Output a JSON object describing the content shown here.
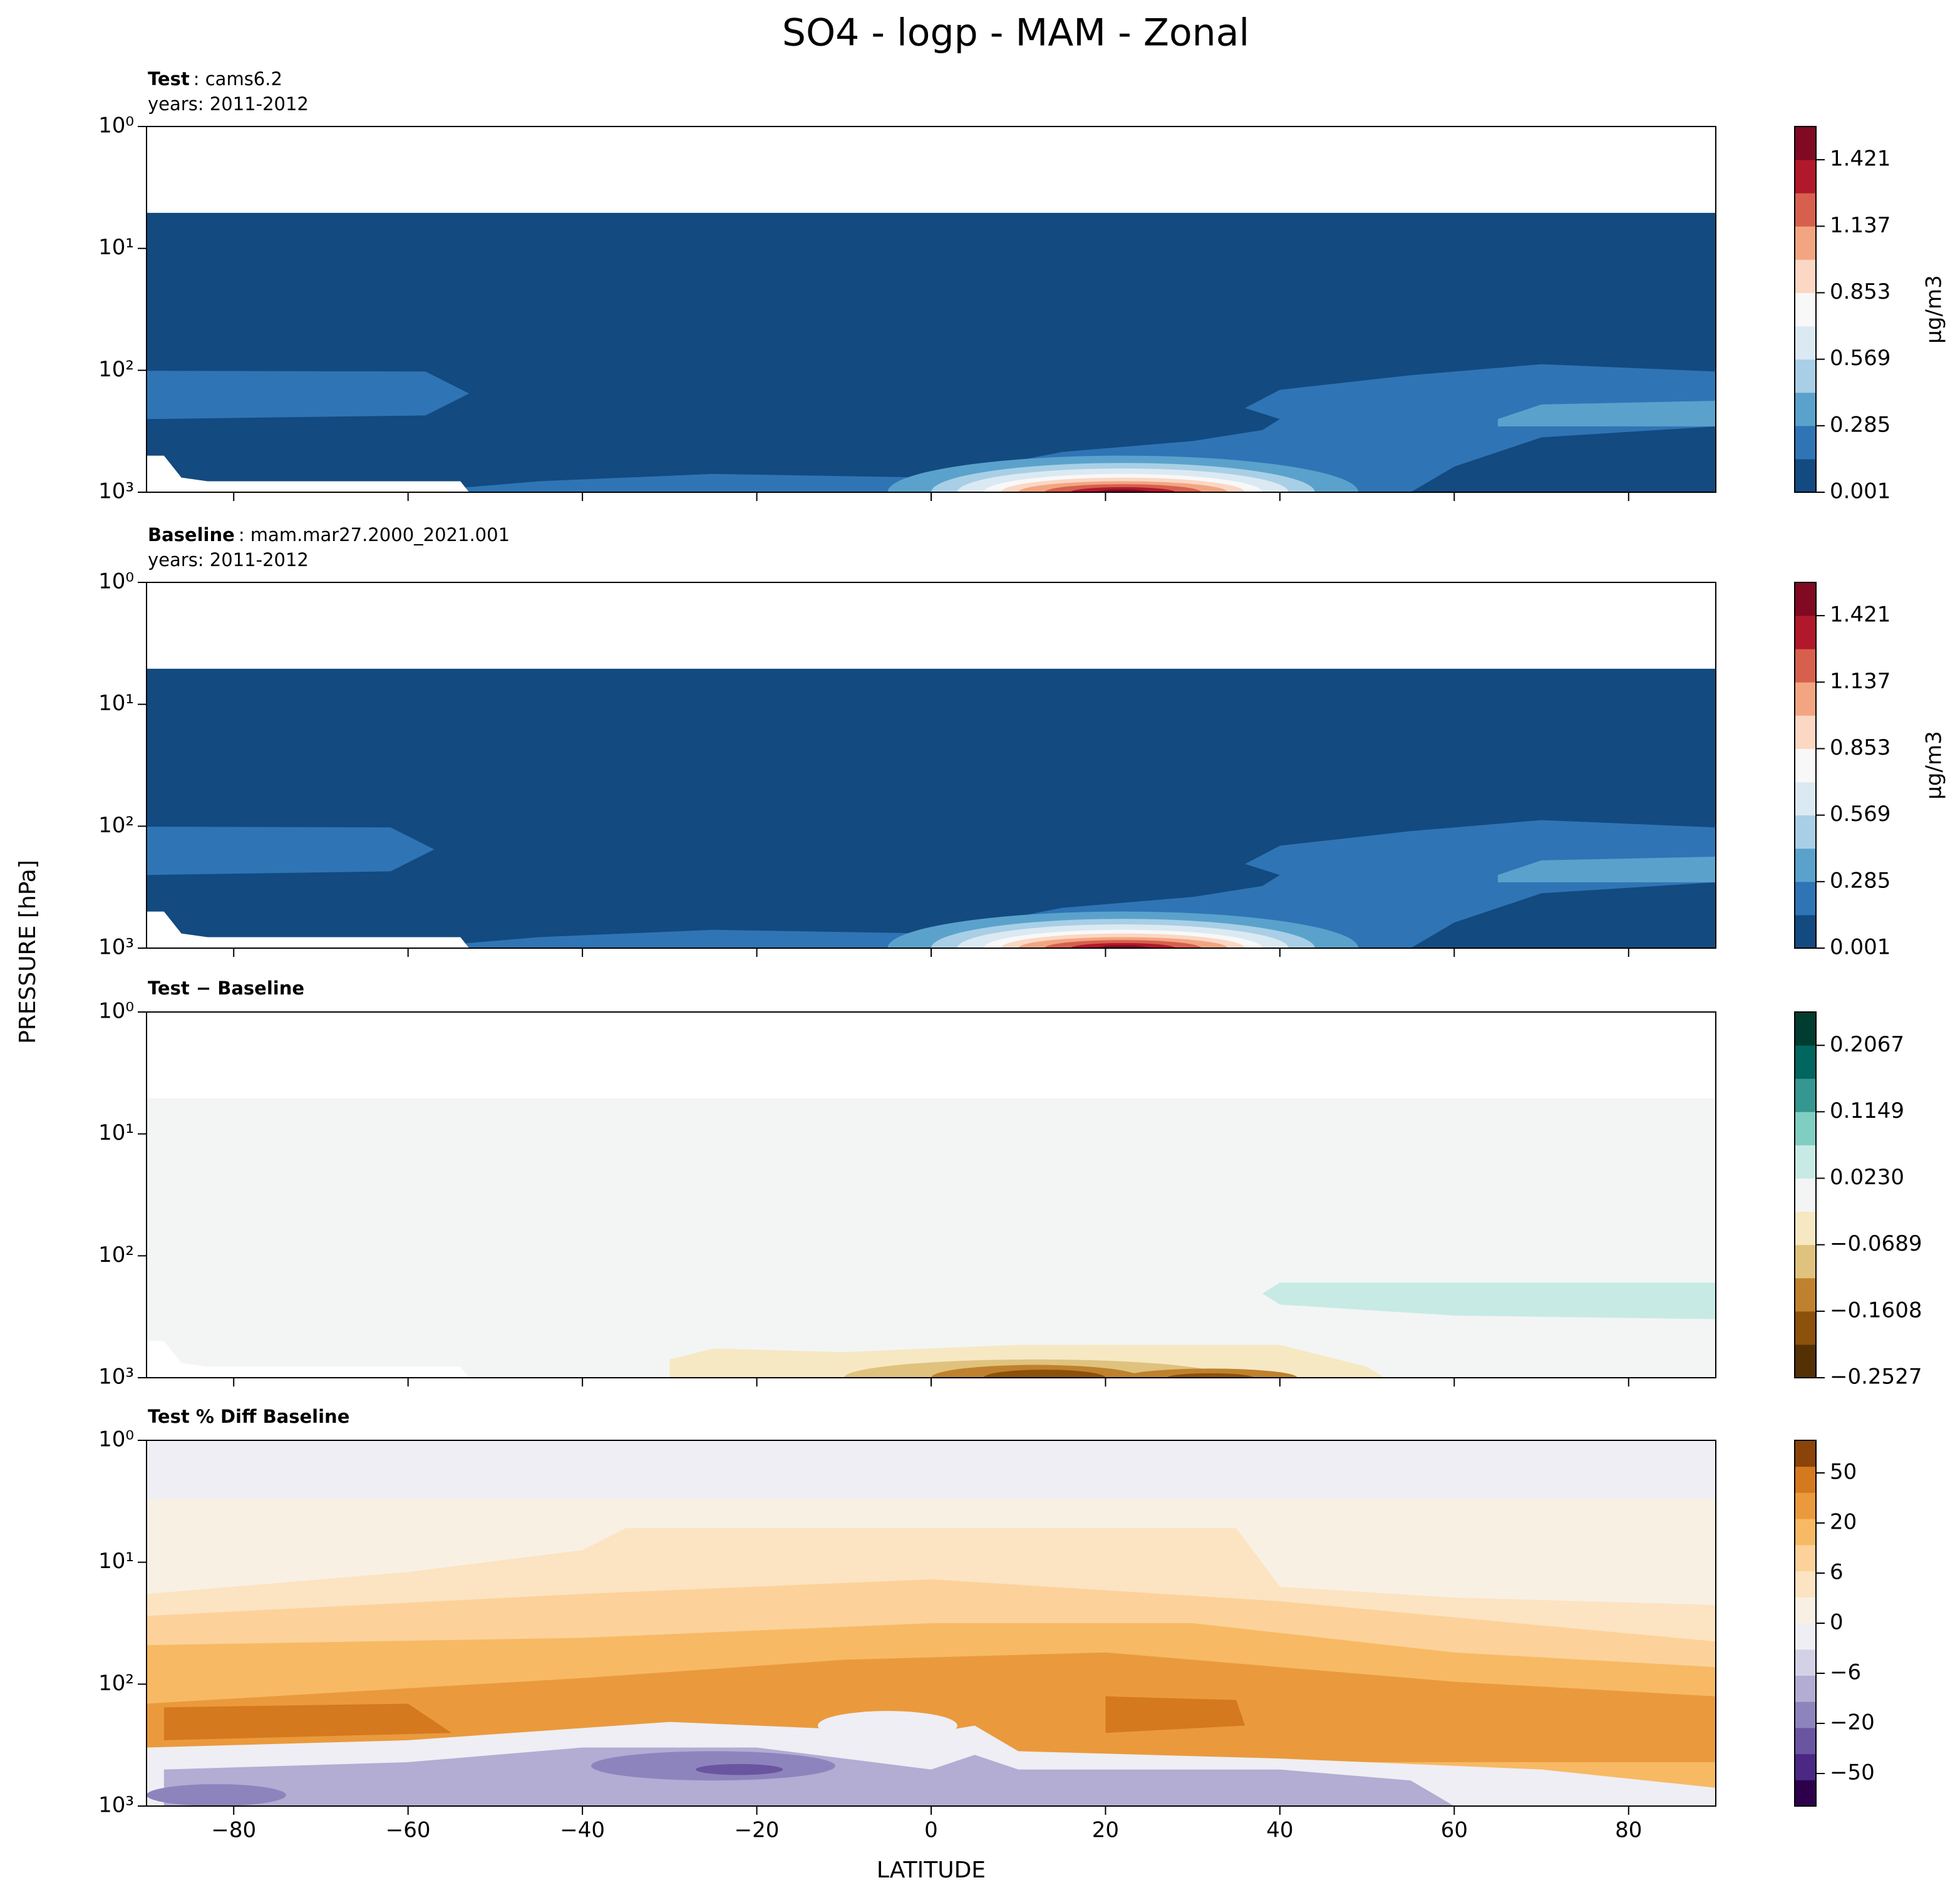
{
  "title": "SO4 - logp - MAM - Zonal",
  "xlabel": "LATITUDE",
  "ylabel": "PRESSURE [hPa]",
  "chart_data": [
    {
      "type": "contour",
      "title": "Test",
      "title_suffix": ": cams6.2",
      "subtitle": "years: 2011-2012",
      "xlim": [
        -90,
        90
      ],
      "xticks": [
        {
          "value": -80,
          "label": "−80"
        },
        {
          "value": -60,
          "label": "−60"
        },
        {
          "value": -40,
          "label": "−40"
        },
        {
          "value": -20,
          "label": "−20"
        },
        0,
        20,
        40,
        60,
        80
      ],
      "ylim": [
        1000,
        1
      ],
      "log_y": true,
      "yticks": [
        {
          "value": 1,
          "label": "10⁰"
        },
        {
          "value": 10,
          "label": "10¹"
        },
        {
          "value": 100,
          "label": "10²"
        },
        {
          "value": 1000,
          "label": "10³"
        }
      ],
      "colorbar": {
        "label": "μg/m3",
        "clim": [
          0.001,
          1.563
        ],
        "ticks": [
          0.001,
          0.285,
          0.569,
          0.853,
          1.137,
          1.421
        ],
        "colors": [
          "#134a80",
          "#2f75b5",
          "#5aa2cc",
          "#a8cfe5",
          "#dbe9f3",
          "#f8f8f8",
          "#fbd7c4",
          "#f3a582",
          "#d6604d",
          "#b2182b",
          "#7f0a22"
        ]
      }
    },
    {
      "type": "contour",
      "title": "Baseline",
      "title_suffix": ": mam.mar27.2000_2021.001",
      "subtitle": "years: 2011-2012",
      "xlim": [
        -90,
        90
      ],
      "xticks": [
        {
          "value": -80,
          "label": "−80"
        },
        {
          "value": -60,
          "label": "−60"
        },
        {
          "value": -40,
          "label": "−40"
        },
        {
          "value": -20,
          "label": "−20"
        },
        0,
        20,
        40,
        60,
        80
      ],
      "ylim": [
        1000,
        1
      ],
      "log_y": true,
      "yticks": [
        {
          "value": 1,
          "label": "10⁰"
        },
        {
          "value": 10,
          "label": "10¹"
        },
        {
          "value": 100,
          "label": "10²"
        },
        {
          "value": 1000,
          "label": "10³"
        }
      ],
      "colorbar": {
        "label": "μg/m3",
        "clim": [
          0.001,
          1.563
        ],
        "ticks": [
          0.001,
          0.285,
          0.569,
          0.853,
          1.137,
          1.421
        ],
        "colors": [
          "#134a80",
          "#2f75b5",
          "#5aa2cc",
          "#a8cfe5",
          "#dbe9f3",
          "#f8f8f8",
          "#fbd7c4",
          "#f3a582",
          "#d6604d",
          "#b2182b",
          "#7f0a22"
        ]
      }
    },
    {
      "type": "contour",
      "title": "Test − Baseline",
      "xlim": [
        -90,
        90
      ],
      "xticks": [
        {
          "value": -80,
          "label": "−80"
        },
        {
          "value": -60,
          "label": "−60"
        },
        {
          "value": -40,
          "label": "−40"
        },
        {
          "value": -20,
          "label": "−20"
        },
        0,
        20,
        40,
        60,
        80
      ],
      "ylim": [
        1000,
        1
      ],
      "log_y": true,
      "yticks": [
        {
          "value": 1,
          "label": "10⁰"
        },
        {
          "value": 10,
          "label": "10¹"
        },
        {
          "value": 100,
          "label": "10²"
        },
        {
          "value": 1000,
          "label": "10³"
        }
      ],
      "colorbar": {
        "clim": [
          -0.2527,
          0.2528
        ],
        "ticks": [
          {
            "value": -0.2527,
            "label": "−0.2527"
          },
          {
            "value": -0.1608,
            "label": "−0.1608"
          },
          {
            "value": -0.0689,
            "label": "−0.0689"
          },
          {
            "value": 0.023,
            "label": "0.0230"
          },
          0.1149,
          0.2067
        ],
        "colors": [
          "#543005",
          "#8c510a",
          "#bf812d",
          "#dfc27d",
          "#f6e8c3",
          "#f3f5f4",
          "#c7eae5",
          "#80cdc1",
          "#35978f",
          "#01665e",
          "#003c30"
        ]
      }
    },
    {
      "type": "contour",
      "title": "Test % Diff Baseline",
      "xlim": [
        -90,
        90
      ],
      "xticks": [
        {
          "value": -80,
          "label": "−80"
        },
        {
          "value": -60,
          "label": "−60"
        },
        {
          "value": -40,
          "label": "−40"
        },
        {
          "value": -20,
          "label": "−20"
        },
        0,
        20,
        40,
        60,
        80
      ],
      "ylim": [
        1000,
        1
      ],
      "log_y": true,
      "yticks": [
        {
          "value": 1,
          "label": "10⁰"
        },
        {
          "value": 10,
          "label": "10¹"
        },
        {
          "value": 100,
          "label": "10²"
        },
        {
          "value": 1000,
          "label": "10³"
        }
      ],
      "colorbar": {
        "scale": "levels",
        "ticks": [
          {
            "value": -50,
            "label": "−50"
          },
          {
            "value": -20,
            "label": "−20"
          },
          {
            "value": -6,
            "label": "−6"
          },
          0,
          6,
          20,
          50
        ],
        "colors": [
          "#2d004b",
          "#4b2883",
          "#6a55a0",
          "#8e84bd",
          "#b3acd3",
          "#d3d1e6",
          "#eeeef4",
          "#f9f0e4",
          "#fce3c2",
          "#fcd29a",
          "#f7b964",
          "#ea9a3c",
          "#d4791e",
          "#8a4409"
        ]
      }
    }
  ]
}
